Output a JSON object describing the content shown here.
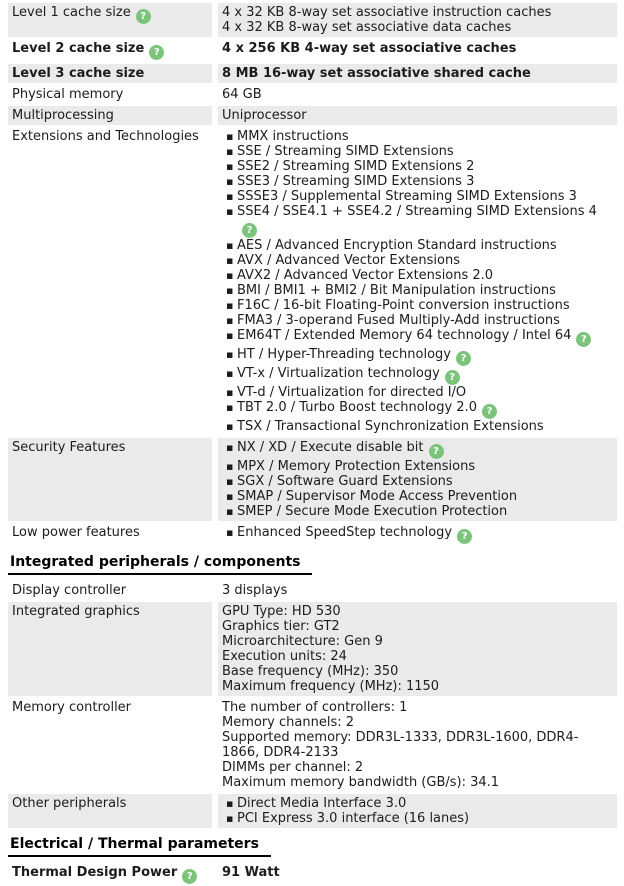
{
  "theme": {
    "row_shade": "#eaeaea",
    "text_color": "#1c1c1c",
    "help_bg": "#7cc47c",
    "help_fg": "#ffffff"
  },
  "help_glyph": "?",
  "bullet_glyph": "▪",
  "sections": [
    {
      "name": "cpu-features",
      "header": null,
      "rows": [
        {
          "label": "Level 1 cache size",
          "label_help": true,
          "bold": false,
          "shade": true,
          "value_type": "lines",
          "items": [
            {
              "text": "4 x 32 KB 8-way set associative instruction caches"
            },
            {
              "text": "4 x 32 KB 8-way set associative data caches"
            }
          ]
        },
        {
          "label": "Level 2 cache size",
          "label_help": true,
          "bold": true,
          "shade": false,
          "value_type": "lines",
          "items": [
            {
              "text": "4 x 256 KB 4-way set associative caches"
            }
          ]
        },
        {
          "label": "Level 3 cache size",
          "label_help": false,
          "bold": true,
          "shade": true,
          "value_type": "lines",
          "items": [
            {
              "text": "8 MB 16-way set associative shared cache"
            }
          ]
        },
        {
          "label": "Physical memory",
          "label_help": false,
          "bold": false,
          "shade": false,
          "value_type": "lines",
          "items": [
            {
              "text": "64 GB"
            }
          ]
        },
        {
          "label": "Multiprocessing",
          "label_help": false,
          "bold": false,
          "shade": true,
          "value_type": "lines",
          "items": [
            {
              "text": "Uniprocessor"
            }
          ]
        },
        {
          "label": "Extensions and Technologies",
          "label_help": false,
          "bold": false,
          "shade": false,
          "value_type": "bullets",
          "items": [
            {
              "text": "MMX instructions"
            },
            {
              "text": "SSE / Streaming SIMD Extensions"
            },
            {
              "text": "SSE2 / Streaming SIMD Extensions 2"
            },
            {
              "text": "SSE3 / Streaming SIMD Extensions 3"
            },
            {
              "text": "SSSE3 / Supplemental Streaming SIMD Extensions 3"
            },
            {
              "text": "SSE4 / SSE4.1 + SSE4.2 / Streaming SIMD Extensions 4",
              "help": true
            },
            {
              "text": "AES / Advanced Encryption Standard instructions"
            },
            {
              "text": "AVX / Advanced Vector Extensions"
            },
            {
              "text": "AVX2 / Advanced Vector Extensions 2.0"
            },
            {
              "text": "BMI / BMI1 + BMI2 / Bit Manipulation instructions"
            },
            {
              "text": "F16C / 16-bit Floating-Point conversion instructions"
            },
            {
              "text": "FMA3 / 3-operand Fused Multiply-Add instructions"
            },
            {
              "text": "EM64T / Extended Memory 64 technology / Intel 64",
              "help": true
            },
            {
              "text": "HT / Hyper-Threading technology",
              "help": true
            },
            {
              "text": "VT-x / Virtualization technology",
              "help": true
            },
            {
              "text": "VT-d / Virtualization for directed I/O"
            },
            {
              "text": "TBT 2.0 / Turbo Boost technology 2.0",
              "help": true
            },
            {
              "text": "TSX / Transactional Synchronization Extensions"
            }
          ]
        },
        {
          "label": "Security Features",
          "label_help": false,
          "bold": false,
          "shade": true,
          "value_type": "bullets",
          "items": [
            {
              "text": "NX / XD / Execute disable bit",
              "help": true
            },
            {
              "text": "MPX / Memory Protection Extensions"
            },
            {
              "text": "SGX / Software Guard Extensions"
            },
            {
              "text": "SMAP / Supervisor Mode Access Prevention"
            },
            {
              "text": "SMEP / Secure Mode Execution Protection"
            }
          ]
        },
        {
          "label": "Low power features",
          "label_help": false,
          "bold": false,
          "shade": false,
          "value_type": "bullets",
          "items": [
            {
              "text": "Enhanced SpeedStep technology",
              "help": true
            }
          ]
        }
      ]
    },
    {
      "name": "integrated-peripherals",
      "header": "Integrated peripherals / components",
      "rows": [
        {
          "label": "Display controller",
          "label_help": false,
          "bold": false,
          "shade": false,
          "value_type": "lines",
          "items": [
            {
              "text": "3 displays"
            }
          ]
        },
        {
          "label": "Integrated graphics",
          "label_help": false,
          "bold": false,
          "shade": true,
          "value_type": "lines",
          "items": [
            {
              "text": "GPU Type: HD 530"
            },
            {
              "text": "Graphics tier: GT2"
            },
            {
              "text": "Microarchitecture: Gen 9"
            },
            {
              "text": "Execution units: 24"
            },
            {
              "text": "Base frequency (MHz): 350"
            },
            {
              "text": "Maximum frequency (MHz): 1150"
            }
          ]
        },
        {
          "label": "Memory controller",
          "label_help": false,
          "bold": false,
          "shade": false,
          "value_type": "lines",
          "items": [
            {
              "text": "The number of controllers: 1"
            },
            {
              "text": "Memory channels: 2"
            },
            {
              "text": "Supported memory: DDR3L-1333, DDR3L-1600, DDR4-1866, DDR4-2133"
            },
            {
              "text": "DIMMs per channel: 2"
            },
            {
              "text": "Maximum memory bandwidth (GB/s): 34.1"
            }
          ]
        },
        {
          "label": "Other peripherals",
          "label_help": false,
          "bold": false,
          "shade": true,
          "value_type": "bullets",
          "items": [
            {
              "text": "Direct Media Interface 3.0"
            },
            {
              "text": "PCI Express 3.0 interface (16 lanes)"
            }
          ]
        }
      ]
    },
    {
      "name": "electrical-thermal",
      "header": "Electrical / Thermal parameters",
      "rows": [
        {
          "label": "Thermal Design Power",
          "label_help": true,
          "bold": true,
          "shade": false,
          "value_type": "lines",
          "items": [
            {
              "text": "91 Watt"
            }
          ]
        }
      ]
    }
  ]
}
